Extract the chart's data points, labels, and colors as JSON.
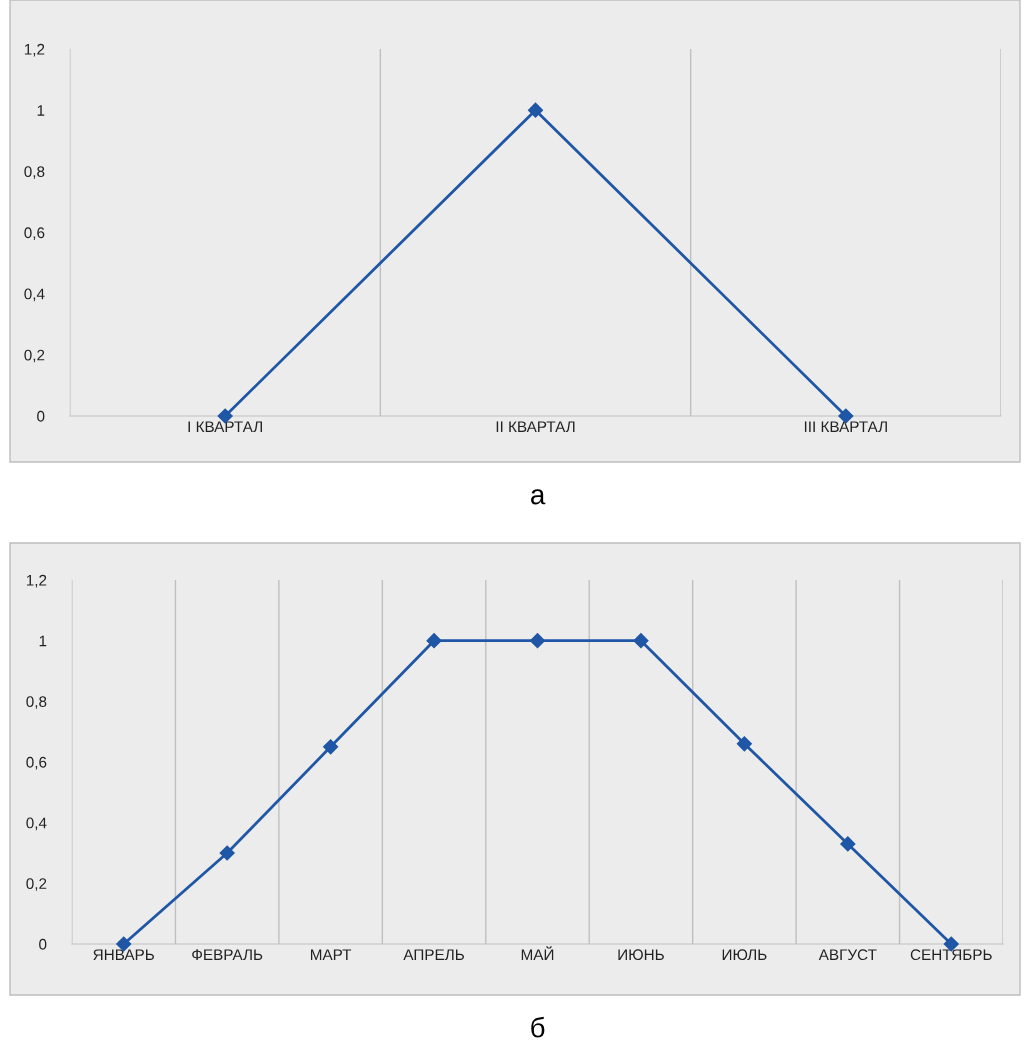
{
  "chart_data": [
    {
      "type": "line",
      "title": "а",
      "categories": [
        "I КВАРТАЛ",
        "II КВАРТАЛ",
        "III КВАРТАЛ"
      ],
      "series": [
        {
          "color": "#1f56a5",
          "values": [
            0,
            1,
            0
          ]
        }
      ],
      "ylim": [
        0,
        1.2
      ],
      "yticks": [
        0,
        {
          "value": 0.2,
          "label": "0,2"
        },
        {
          "value": 0.4,
          "label": "0,4"
        },
        {
          "value": 0.6,
          "label": "0,6"
        },
        {
          "value": 0.8,
          "label": "0,8"
        },
        1,
        {
          "value": 1.2,
          "label": "1,2"
        }
      ],
      "grid": "x",
      "marker": "diamond",
      "line_style": "solid"
    },
    {
      "type": "line",
      "title": "б",
      "categories": [
        "ЯНВАРЬ",
        "ФЕВРАЛЬ",
        "МАРТ",
        "АПРЕЛЬ",
        "МАЙ",
        "ИЮНЬ",
        "ИЮЛЬ",
        "АВГУСТ",
        "СЕНТЯБРЬ"
      ],
      "series": [
        {
          "color": "#1f56a5",
          "values": [
            0,
            0.3,
            0.65,
            1,
            1,
            1,
            0.66,
            0.33,
            0
          ]
        }
      ],
      "ylim": [
        0,
        1.2
      ],
      "yticks": [
        0,
        {
          "value": 0.2,
          "label": "0,2"
        },
        {
          "value": 0.4,
          "label": "0,4"
        },
        {
          "value": 0.6,
          "label": "0,6"
        },
        {
          "value": 0.8,
          "label": "0,8"
        },
        1,
        {
          "value": 1.2,
          "label": "1,2"
        }
      ],
      "grid": "x",
      "marker": "diamond",
      "line_style": "solid"
    }
  ]
}
